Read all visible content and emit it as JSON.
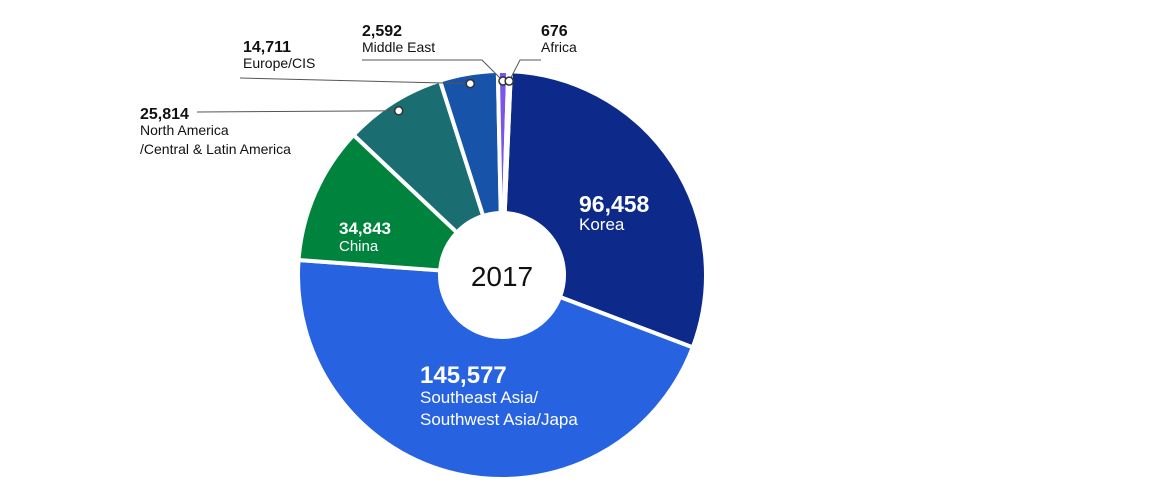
{
  "chart_data": {
    "type": "pie",
    "title": "",
    "center_label": "2017",
    "slices": [
      {
        "label": "Korea",
        "value": 96458,
        "display_value": "96,458",
        "color": "#0d2a8a",
        "label_lines": [
          "Korea"
        ]
      },
      {
        "label": "Southeast Asia/ Southwest Asia/Japa",
        "value": 145577,
        "display_value": "145,577",
        "color": "#2762e0",
        "label_lines": [
          "Southeast Asia/",
          "Southwest Asia/Japa"
        ]
      },
      {
        "label": "China",
        "value": 34843,
        "display_value": "34,843",
        "color": "#00843d",
        "label_lines": [
          "China"
        ]
      },
      {
        "label": "North America /Central & Latin America",
        "value": 25814,
        "display_value": "25,814",
        "color": "#1a6e72",
        "label_lines": [
          "North America",
          "/Central & Latin America"
        ]
      },
      {
        "label": "Europe/CIS",
        "value": 14711,
        "display_value": "14,711",
        "color": "#1753a8",
        "label_lines": [
          "Europe/CIS"
        ]
      },
      {
        "label": "Middle East",
        "value": 2592,
        "display_value": "2,592",
        "color": "#7b55e8",
        "label_lines": [
          "Middle East"
        ]
      },
      {
        "label": "Africa",
        "value": 676,
        "display_value": "676",
        "color": "#3a86c6",
        "label_lines": [
          "Africa"
        ]
      }
    ]
  }
}
